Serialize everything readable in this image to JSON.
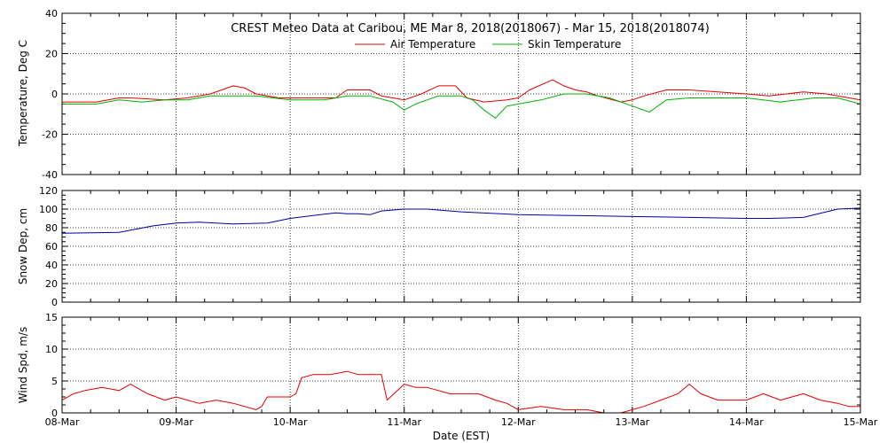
{
  "window_title": "CREST Meteo Data at Caribou, ME   Mar  8, 2018(2018067) - Mar 15, 2018(2018074)",
  "colors": {
    "air": "#e00000",
    "skin": "#00b000",
    "snow": "#0000a0",
    "wind": "#e00000",
    "axis": "#000000"
  },
  "chart_data": [
    {
      "type": "line",
      "title": "CREST Meteo Data at Caribou, ME   Mar  8, 2018(2018067) - Mar 15, 2018(2018074)",
      "xlabel": "",
      "ylabel": "Temperature, Deg C",
      "xlim": [
        0,
        7
      ],
      "ylim": [
        -40,
        40
      ],
      "yticks": [
        -40,
        -20,
        0,
        20,
        40
      ],
      "grid": true,
      "legend": "top-center",
      "series": [
        {
          "name": "Air Temperature",
          "color": "#e00000",
          "x": [
            0,
            0.3,
            0.5,
            0.6,
            0.9,
            1.1,
            1.3,
            1.5,
            1.6,
            1.7,
            1.9,
            2.0,
            2.2,
            2.4,
            2.5,
            2.7,
            2.8,
            2.9,
            3.0,
            3.15,
            3.3,
            3.45,
            3.55,
            3.7,
            3.9,
            4.0,
            4.1,
            4.3,
            4.4,
            4.5,
            4.6,
            4.7,
            4.9,
            5.0,
            5.1,
            5.3,
            5.5,
            6.0,
            6.2,
            6.5,
            6.7,
            7.0
          ],
          "y": [
            -4,
            -4,
            -2,
            -2,
            -3,
            -2,
            0,
            4,
            3,
            0,
            -2,
            -2,
            -2,
            -2,
            2,
            2,
            -1,
            -2,
            -3,
            0,
            4,
            4,
            -2,
            -4,
            -3,
            -2,
            2,
            7,
            4,
            2,
            1,
            -1,
            -4,
            -3,
            -1,
            2,
            2,
            0,
            -1,
            1,
            0,
            -3
          ]
        },
        {
          "name": "Skin Temperature",
          "color": "#00b000",
          "x": [
            0,
            0.3,
            0.5,
            0.7,
            0.9,
            1.1,
            1.3,
            1.5,
            1.7,
            2.0,
            2.3,
            2.5,
            2.7,
            2.9,
            3.0,
            3.1,
            3.2,
            3.3,
            3.5,
            3.6,
            3.7,
            3.8,
            3.9,
            4.0,
            4.2,
            4.4,
            4.6,
            4.8,
            5.0,
            5.15,
            5.3,
            5.5,
            6.0,
            6.3,
            6.6,
            6.8,
            7.0
          ],
          "y": [
            -5,
            -5,
            -3,
            -4,
            -3,
            -3,
            -1,
            -1,
            -1,
            -3,
            -3,
            -1,
            -1,
            -4,
            -8,
            -5,
            -3,
            -1,
            -1,
            -3,
            -8,
            -12,
            -6,
            -5,
            -3,
            0,
            0,
            -2,
            -6,
            -9,
            -3,
            -2,
            -2,
            -4,
            -2,
            -2,
            -5
          ]
        }
      ]
    },
    {
      "type": "line",
      "xlabel": "",
      "ylabel": "Snow Dep, cm",
      "xlim": [
        0,
        7
      ],
      "ylim": [
        0,
        120
      ],
      "yticks": [
        0,
        20,
        40,
        60,
        80,
        100,
        120
      ],
      "grid": true,
      "series": [
        {
          "color": "#0000a0",
          "x": [
            0,
            0.5,
            0.8,
            1.0,
            1.2,
            1.5,
            1.8,
            2.0,
            2.2,
            2.4,
            2.5,
            2.6,
            2.7,
            2.8,
            3.0,
            3.2,
            3.5,
            4.0,
            4.5,
            5.0,
            5.5,
            6.0,
            6.2,
            6.5,
            6.8,
            7.0
          ],
          "y": [
            74,
            75,
            82,
            85,
            86,
            84,
            85,
            90,
            93,
            96,
            95,
            95,
            94,
            98,
            100,
            100,
            97,
            94,
            93,
            92,
            91,
            90,
            90,
            91,
            100,
            101
          ]
        }
      ]
    },
    {
      "type": "line",
      "xlabel": "Date (EST)",
      "ylabel": "Wind Spd, m/s",
      "xlim": [
        0,
        7
      ],
      "ylim": [
        0,
        15
      ],
      "yticks": [
        0,
        5,
        10,
        15
      ],
      "xticks": [
        "08-Mar",
        "09-Mar",
        "10-Mar",
        "11-Mar",
        "12-Mar",
        "13-Mar",
        "14-Mar",
        "15-Mar"
      ],
      "grid": true,
      "series": [
        {
          "color": "#e00000",
          "x": [
            0,
            0.1,
            0.2,
            0.35,
            0.5,
            0.6,
            0.65,
            0.75,
            0.9,
            1.0,
            1.1,
            1.2,
            1.35,
            1.5,
            1.7,
            1.75,
            1.8,
            2.0,
            2.05,
            2.1,
            2.2,
            2.35,
            2.5,
            2.6,
            2.7,
            2.8,
            2.85,
            3.0,
            3.1,
            3.2,
            3.4,
            3.5,
            3.65,
            3.8,
            3.9,
            4.0,
            4.2,
            4.4,
            4.6,
            4.75,
            4.9,
            5.0,
            5.1,
            5.25,
            5.4,
            5.5,
            5.6,
            5.75,
            5.9,
            6.0,
            6.15,
            6.3,
            6.5,
            6.65,
            6.8,
            6.9,
            7.0
          ],
          "y": [
            2,
            3,
            3.5,
            4,
            3.5,
            4.5,
            4,
            3,
            2,
            2.5,
            2,
            1.5,
            2,
            1.5,
            0.5,
            1,
            2.5,
            2.5,
            3,
            5.5,
            6,
            6,
            6.5,
            6,
            6,
            6,
            2,
            4.5,
            4,
            4,
            3,
            3,
            3,
            2,
            1.5,
            0.5,
            1,
            0.5,
            0.5,
            0,
            0,
            0.5,
            1,
            2,
            3,
            4.5,
            3,
            2,
            2,
            2,
            3,
            2,
            3,
            2,
            1.5,
            1,
            1
          ]
        }
      ]
    }
  ]
}
